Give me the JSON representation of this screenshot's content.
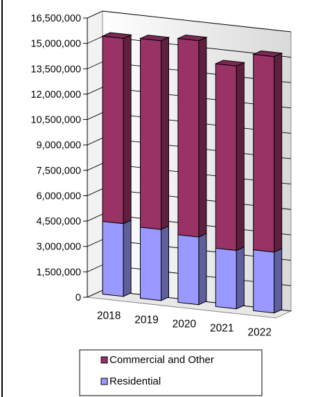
{
  "chart_data": {
    "type": "bar",
    "stacked": true,
    "three_d": true,
    "categories": [
      "2018",
      "2019",
      "2020",
      "2021",
      "2022"
    ],
    "series": [
      {
        "name": "Residential",
        "values": [
          4300000,
          4200000,
          4000000,
          3450000,
          3600000
        ],
        "color": "#9999ff"
      },
      {
        "name": "Commercial and Other",
        "values": [
          10950000,
          11150000,
          11600000,
          10900000,
          11550000
        ],
        "color": "#993366"
      }
    ],
    "ylim": [
      0,
      16500000
    ],
    "yticks": [
      "0",
      "1,500,000",
      "3,000,000",
      "4,500,000",
      "6,000,000",
      "7,500,000",
      "9,000,000",
      "10,500,000",
      "12,000,000",
      "13,500,000",
      "15,000,000",
      "16,500,000"
    ],
    "grid": true,
    "legend": {
      "position": "bottom",
      "items": [
        "Commercial and Other",
        "Residential"
      ]
    }
  }
}
